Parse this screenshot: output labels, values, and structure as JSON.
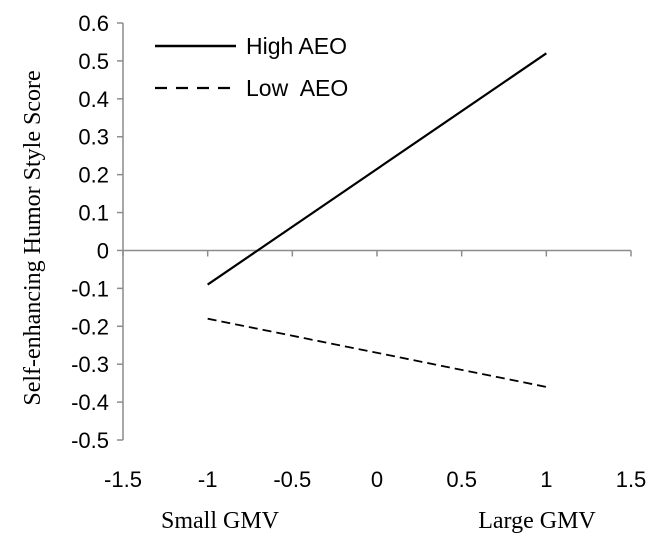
{
  "chart_data": {
    "type": "line",
    "title": "",
    "xlabel": "",
    "ylabel": "Self-enhancing Humor Style Score",
    "xlim": [
      -1.5,
      1.5
    ],
    "ylim": [
      -0.5,
      0.6
    ],
    "x_ticks": [
      "-1.5",
      "-1",
      "-0.5",
      "0",
      "0.5",
      "1",
      "1.5"
    ],
    "y_ticks": [
      "0.6",
      "0.5",
      "0.4",
      "0.3",
      "0.2",
      "0.1",
      "0",
      "-0.1",
      "-0.2",
      "-0.3",
      "-0.4",
      "-0.5"
    ],
    "x_annotations": {
      "left": "Small GMV",
      "right": "Large GMV"
    },
    "grid": false,
    "legend_position": "top-left",
    "series": [
      {
        "name": "High AEO",
        "style": "solid",
        "color": "#000000",
        "x": [
          -1,
          1
        ],
        "y": [
          -0.09,
          0.52
        ]
      },
      {
        "name": "Low  AEO",
        "style": "dashed",
        "color": "#000000",
        "x": [
          -1,
          1
        ],
        "y": [
          -0.18,
          -0.36
        ]
      }
    ]
  }
}
